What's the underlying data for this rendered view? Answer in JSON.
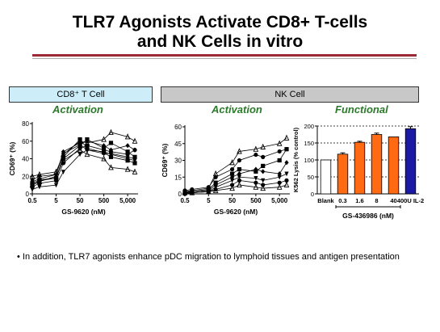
{
  "slide": {
    "title_line1": "TLR7 Agonists Activate CD8+ T-cells",
    "title_line2": "and NK Cells in vitro",
    "cd8_header": "CD8⁺ T Cell",
    "nk_header": "NK Cell",
    "bullet": "• In addition, TLR7 agonists enhance pDC migration to lymphoid tissues and antigen presentation",
    "rule_color": "#9a2a35"
  },
  "chart_data": [
    {
      "type": "line",
      "subtitle": "Activation",
      "xlabel": "GS-9620 (nM)",
      "ylabel": "CD69⁺ (%)",
      "x": [
        0.5,
        1,
        5,
        10,
        50,
        100,
        500,
        1000,
        5000,
        10000
      ],
      "xticks": [
        "0.5",
        "5",
        "50",
        "500",
        "5,000"
      ],
      "xscale": "log",
      "ylim": [
        0,
        80
      ],
      "yticks": [
        0,
        20,
        40,
        60,
        80
      ],
      "series": [
        {
          "marker": "triangle",
          "values": [
            20,
            22,
            25,
            45,
            60,
            58,
            62,
            70,
            65,
            60
          ]
        },
        {
          "marker": "square",
          "values": [
            10,
            15,
            18,
            40,
            55,
            62,
            52,
            58,
            48,
            42
          ]
        },
        {
          "marker": "diamond",
          "values": [
            14,
            17,
            22,
            48,
            58,
            60,
            55,
            50,
            55,
            50
          ]
        },
        {
          "marker": "circle",
          "values": [
            8,
            12,
            15,
            35,
            52,
            55,
            50,
            48,
            45,
            50
          ]
        },
        {
          "marker": "triangle-down",
          "values": [
            5,
            8,
            10,
            25,
            45,
            50,
            48,
            45,
            40,
            38
          ]
        },
        {
          "marker": "square",
          "values": [
            12,
            16,
            18,
            42,
            62,
            52,
            47,
            42,
            38,
            35
          ]
        },
        {
          "marker": "triangle",
          "values": [
            10,
            14,
            20,
            38,
            50,
            45,
            40,
            30,
            28,
            25
          ]
        },
        {
          "marker": "diamond",
          "values": [
            16,
            20,
            22,
            46,
            56,
            50,
            46,
            46,
            42,
            40
          ]
        }
      ],
      "color": "#000000"
    },
    {
      "type": "line",
      "subtitle": "Activation",
      "xlabel": "GS-9620 (nM)",
      "ylabel": "CD69⁺ (%)",
      "x": [
        0.5,
        1,
        5,
        10,
        50,
        100,
        500,
        1000,
        5000,
        10000
      ],
      "xticks": [
        "0.5",
        "5",
        "50",
        "500",
        "5,000"
      ],
      "xscale": "log",
      "ylim": [
        0,
        60
      ],
      "yticks": [
        0,
        15,
        30,
        45,
        60
      ],
      "series": [
        {
          "marker": "triangle",
          "values": [
            2,
            3,
            5,
            18,
            28,
            38,
            40,
            42,
            45,
            50
          ]
        },
        {
          "marker": "circle",
          "values": [
            3,
            4,
            6,
            15,
            22,
            30,
            35,
            33,
            38,
            40
          ]
        },
        {
          "marker": "square",
          "values": [
            1,
            2,
            4,
            10,
            18,
            22,
            20,
            25,
            30,
            40
          ]
        },
        {
          "marker": "diamond",
          "values": [
            2,
            2,
            3,
            8,
            15,
            18,
            22,
            20,
            18,
            28
          ]
        },
        {
          "marker": "triangle-down",
          "values": [
            1,
            1,
            2,
            6,
            12,
            15,
            14,
            12,
            15,
            18
          ]
        },
        {
          "marker": "circle",
          "values": [
            0,
            1,
            2,
            4,
            8,
            12,
            10,
            8,
            10,
            12
          ]
        },
        {
          "marker": "triangle",
          "values": [
            1,
            1,
            2,
            3,
            5,
            8,
            6,
            5,
            6,
            8
          ]
        }
      ],
      "color": "#000000"
    },
    {
      "type": "bar",
      "subtitle": "Functional",
      "xlabel": "GS-436986 (nM)",
      "ylabel": "K562 Lysis (% control)",
      "categories": [
        "Blank",
        "0.3",
        "1.6",
        "8",
        "40",
        "400U IL-2"
      ],
      "values": [
        100,
        117,
        152,
        175,
        168,
        192
      ],
      "errors": [
        0,
        4,
        3,
        4,
        0,
        6
      ],
      "colors": [
        "#ffffff",
        "#ff6a13",
        "#ff6a13",
        "#ff6a13",
        "#ff6a13",
        "#1a1aa6"
      ],
      "ylim": [
        0,
        200
      ],
      "yticks": [
        0,
        50,
        100,
        150,
        200
      ]
    }
  ]
}
